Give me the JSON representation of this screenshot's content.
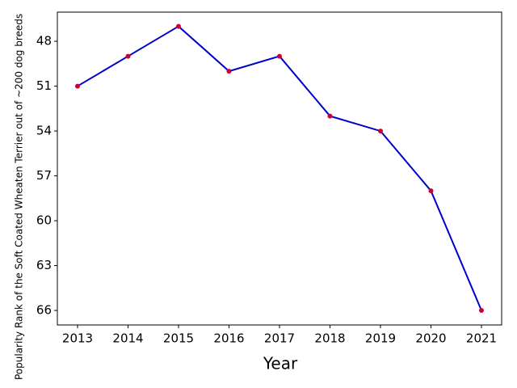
{
  "chart_data": {
    "type": "line",
    "x_label": "Year",
    "y_label": "Popularity Rank of the Soft Coated Wheaten Terrier out of ~200 dog breeds",
    "x": [
      2013,
      2014,
      2015,
      2016,
      2017,
      2018,
      2019,
      2020,
      2021
    ],
    "series": [
      {
        "color": "#0000cc",
        "marker_color": "#cc0033",
        "values": [
          51,
          49,
          47,
          50,
          49,
          53,
          54,
          58,
          66
        ]
      }
    ],
    "xlim": [
      2012.6,
      2021.4
    ],
    "xticks": [
      2013,
      2014,
      2015,
      2016,
      2017,
      2018,
      2019,
      2020,
      2021
    ],
    "ylim": [
      66.97,
      46.05
    ],
    "yticks": [
      48,
      51,
      54,
      57,
      60,
      63,
      66
    ],
    "grid": false
  }
}
